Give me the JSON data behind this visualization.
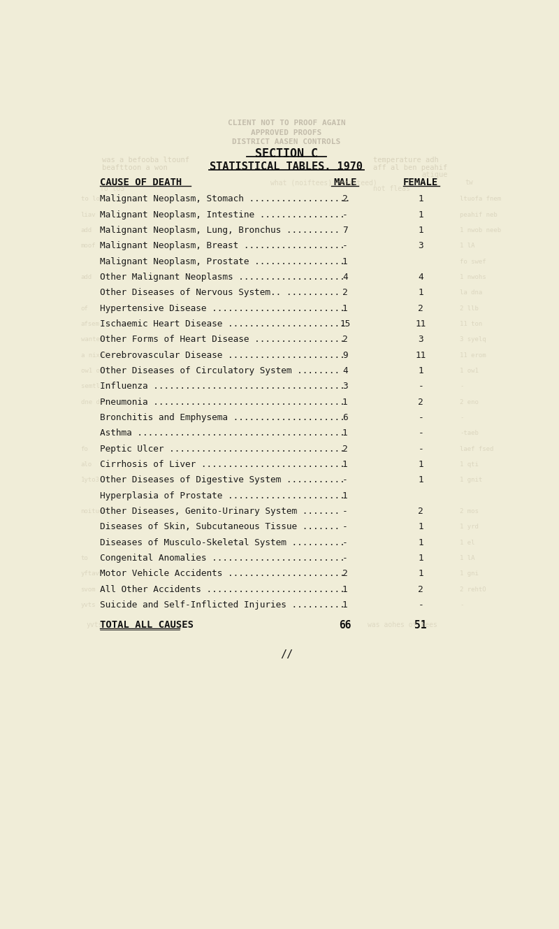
{
  "title1": "SECTION C",
  "title2": "STATISTICAL TABLES. 1970",
  "col_headers": [
    "CAUSE OF DEATH",
    "MALE",
    "FEMALE"
  ],
  "rows": [
    {
      "cause": "Malignant Neoplasm, Stomach ...................",
      "male": "2",
      "female": "1"
    },
    {
      "cause": "Malignant Neoplasm, Intestine ................",
      "male": "-",
      "female": "1"
    },
    {
      "cause": "Malignant Neoplasm, Lung, Bronchus ..........",
      "male": "7",
      "female": "1"
    },
    {
      "cause": "Malignant Neoplasm, Breast ...................",
      "male": "-",
      "female": "3"
    },
    {
      "cause": "Malignant Neoplasm, Prostate .................",
      "male": "1",
      "female": ""
    },
    {
      "cause": "Other Malignant Neoplasms ....................",
      "male": "4",
      "female": "4"
    },
    {
      "cause": "Other Diseases of Nervous System.. ..........",
      "male": "2",
      "female": "1"
    },
    {
      "cause": "Hypertensive Disease .........................",
      "male": "1",
      "female": "2"
    },
    {
      "cause": "Ischaemic Heart Disease ......................",
      "male": "15",
      "female": "11"
    },
    {
      "cause": "Other Forms of Heart Disease .................",
      "male": "2",
      "female": "3"
    },
    {
      "cause": "Cerebrovascular Disease ......................",
      "male": "9",
      "female": "11"
    },
    {
      "cause": "Other Diseases of Circulatory System ........",
      "male": "4",
      "female": "1"
    },
    {
      "cause": "Influenza ....................................",
      "male": "3",
      "female": "-"
    },
    {
      "cause": "Pneumonia ....................................",
      "male": "1",
      "female": "2"
    },
    {
      "cause": "Bronchitis and Emphysema .....................",
      "male": "6",
      "female": "-"
    },
    {
      "cause": "Asthma .......................................",
      "male": "1",
      "female": "-"
    },
    {
      "cause": "Peptic Ulcer .................................",
      "male": "2",
      "female": "-"
    },
    {
      "cause": "Cirrhosis of Liver ...........................",
      "male": "1",
      "female": "1"
    },
    {
      "cause": "Other Diseases of Digestive System ...........",
      "male": "-",
      "female": "1"
    },
    {
      "cause": "Hyperplasia of Prostate ......................",
      "male": "1",
      "female": ""
    },
    {
      "cause": "Other Diseases, Genito-Urinary System .......",
      "male": "-",
      "female": "2"
    },
    {
      "cause": "Diseases of Skin, Subcutaneous Tissue .......",
      "male": "-",
      "female": "1"
    },
    {
      "cause": "Diseases of Musculo-Skeletal System ..........",
      "male": "-",
      "female": "1"
    },
    {
      "cause": "Congenital Anomalies .........................",
      "male": "-",
      "female": "1"
    },
    {
      "cause": "Motor Vehicle Accidents ......................",
      "male": "2",
      "female": "1"
    },
    {
      "cause": "All Other Accidents ..........................",
      "male": "1",
      "female": "2"
    },
    {
      "cause": "Suicide and Self-Inflicted Injuries ..........",
      "male": "1",
      "female": "-"
    }
  ],
  "total_label": "TOTAL ALL CAUSES",
  "total_male": "66",
  "total_female": "51",
  "footer": "//",
  "bg_color": "#f0edd8",
  "text_color": "#1a1a1a",
  "faded_text_color": "#b0a898",
  "ghost_text_color": "#c8c0a8",
  "header_color": "#111111",
  "watermark_lines": [
    "CLIENT NOT TO PROOF AGAIN",
    "APPROVED PROOFS",
    "DISTRICT AASEN CONTROLS"
  ],
  "ghost_lines_left": [
    "was a befooba ltounf",
    "beafttoon a won",
    ""
  ],
  "ghost_lines_right": [
    "temperature adh",
    "aff al ben peahif",
    "atique"
  ]
}
